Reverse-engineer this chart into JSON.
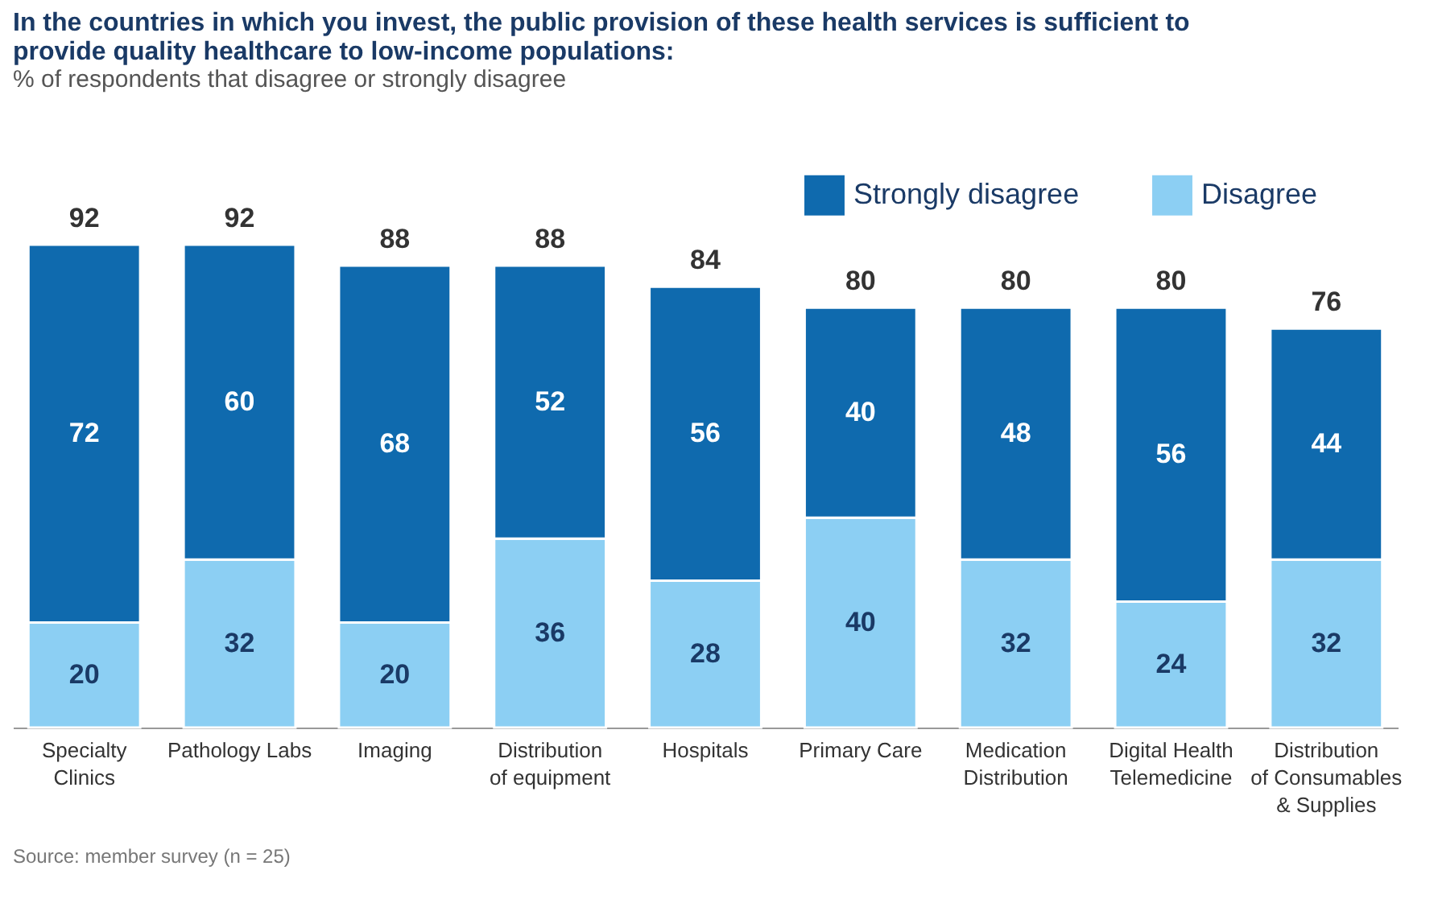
{
  "chart_data": {
    "type": "bar",
    "stacked": true,
    "title": "In the countries in which you invest, the public provision of these health services is sufficient to provide quality healthcare to low-income populations:",
    "subtitle": "% of respondents that disagree or strongly disagree",
    "categories": [
      "Specialty Clinics",
      "Pathology Labs",
      "Imaging",
      "Distribution of equipment",
      "Hospitals",
      "Primary Care",
      "Medication Distribution",
      "Digital Health Telemedicine",
      "Distribution of Consumables & Supplies"
    ],
    "series": [
      {
        "name": "Disagree",
        "color": "#8ccff3",
        "values": [
          20,
          32,
          20,
          36,
          28,
          40,
          32,
          24,
          32
        ]
      },
      {
        "name": "Strongly disagree",
        "color": "#0f6aae",
        "values": [
          72,
          60,
          68,
          52,
          56,
          40,
          48,
          56,
          44
        ]
      }
    ],
    "data_labels": true,
    "totals": [
      "92",
      "92",
      "88",
      "88",
      "84",
      "80",
      "80",
      "80",
      "76"
    ],
    "legend": "top right",
    "annotations": [
      "Source: member survey (n = 25)"
    ]
  }
}
